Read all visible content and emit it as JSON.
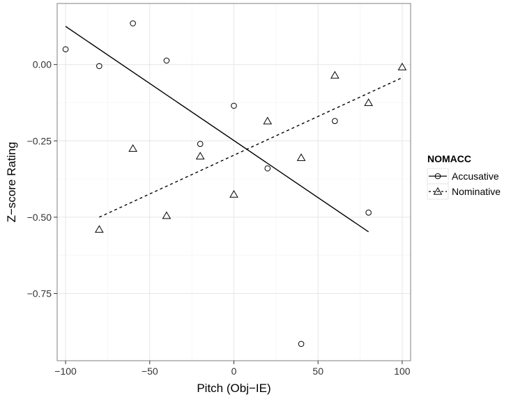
{
  "chart_data": {
    "type": "scatter",
    "title": "",
    "xlabel": "Pitch (Obj−IE)",
    "ylabel": "Z−score Rating",
    "xlim": [
      -105,
      105
    ],
    "ylim": [
      -0.97,
      0.2
    ],
    "x_ticks": [
      -100,
      -50,
      0,
      50,
      100
    ],
    "x_tick_labels": [
      "−100",
      "−50",
      "0",
      "50",
      "100"
    ],
    "y_ticks": [
      0.0,
      -0.25,
      -0.5,
      -0.75
    ],
    "y_tick_labels": [
      "0.00",
      "−0.25",
      "−0.50",
      "−0.75"
    ],
    "grid": true,
    "legend": {
      "title": "NOMACC",
      "position": "right"
    },
    "series": [
      {
        "name": "Accusative",
        "marker": "circle",
        "line_style": "solid",
        "points": [
          [
            -100,
            0.05
          ],
          [
            -80,
            -0.005
          ],
          [
            -60,
            0.135
          ],
          [
            -40,
            0.013
          ],
          [
            -20,
            -0.26
          ],
          [
            0,
            -0.135
          ],
          [
            20,
            -0.34
          ],
          [
            40,
            -0.915
          ],
          [
            60,
            -0.185
          ],
          [
            80,
            -0.485
          ]
        ],
        "fit": [
          [
            -100,
            0.125
          ],
          [
            80,
            -0.548
          ]
        ]
      },
      {
        "name": "Nominative",
        "marker": "triangle",
        "line_style": "dashed",
        "points": [
          [
            -80,
            -0.54
          ],
          [
            -60,
            -0.275
          ],
          [
            -40,
            -0.495
          ],
          [
            -20,
            -0.3
          ],
          [
            0,
            -0.425
          ],
          [
            20,
            -0.185
          ],
          [
            40,
            -0.305
          ],
          [
            60,
            -0.035
          ],
          [
            80,
            -0.125
          ],
          [
            100,
            -0.008
          ]
        ],
        "fit": [
          [
            -80,
            -0.5
          ],
          [
            100,
            -0.043
          ]
        ]
      }
    ]
  }
}
